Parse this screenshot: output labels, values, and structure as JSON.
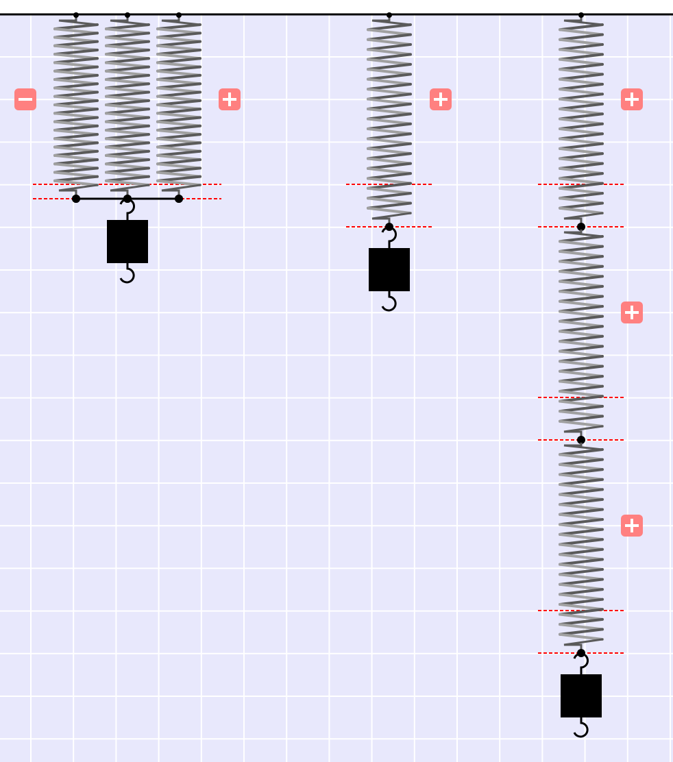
{
  "colors": {
    "background": "#e8e8fc",
    "grid": "#ffffff",
    "top_bar": "#000000",
    "spring_dark": "#5a5a5a",
    "spring_light": "#a0a0a0",
    "equilibrium_line": "#ff0000",
    "button": "#ff8080",
    "button_glyph": "#ffffff",
    "mass": "#000000"
  },
  "systems": [
    {
      "name": "parallel-springs",
      "arrangement": "parallel",
      "spring_count": 3,
      "controls": [
        "minus",
        "plus"
      ]
    },
    {
      "name": "single-spring",
      "arrangement": "single",
      "spring_count": 1,
      "controls": [
        "plus"
      ]
    },
    {
      "name": "series-springs",
      "arrangement": "series",
      "spring_count": 3,
      "controls": [
        "plus",
        "plus",
        "plus"
      ]
    }
  ],
  "icons": {
    "minus": "minus-icon",
    "plus": "plus-icon"
  }
}
